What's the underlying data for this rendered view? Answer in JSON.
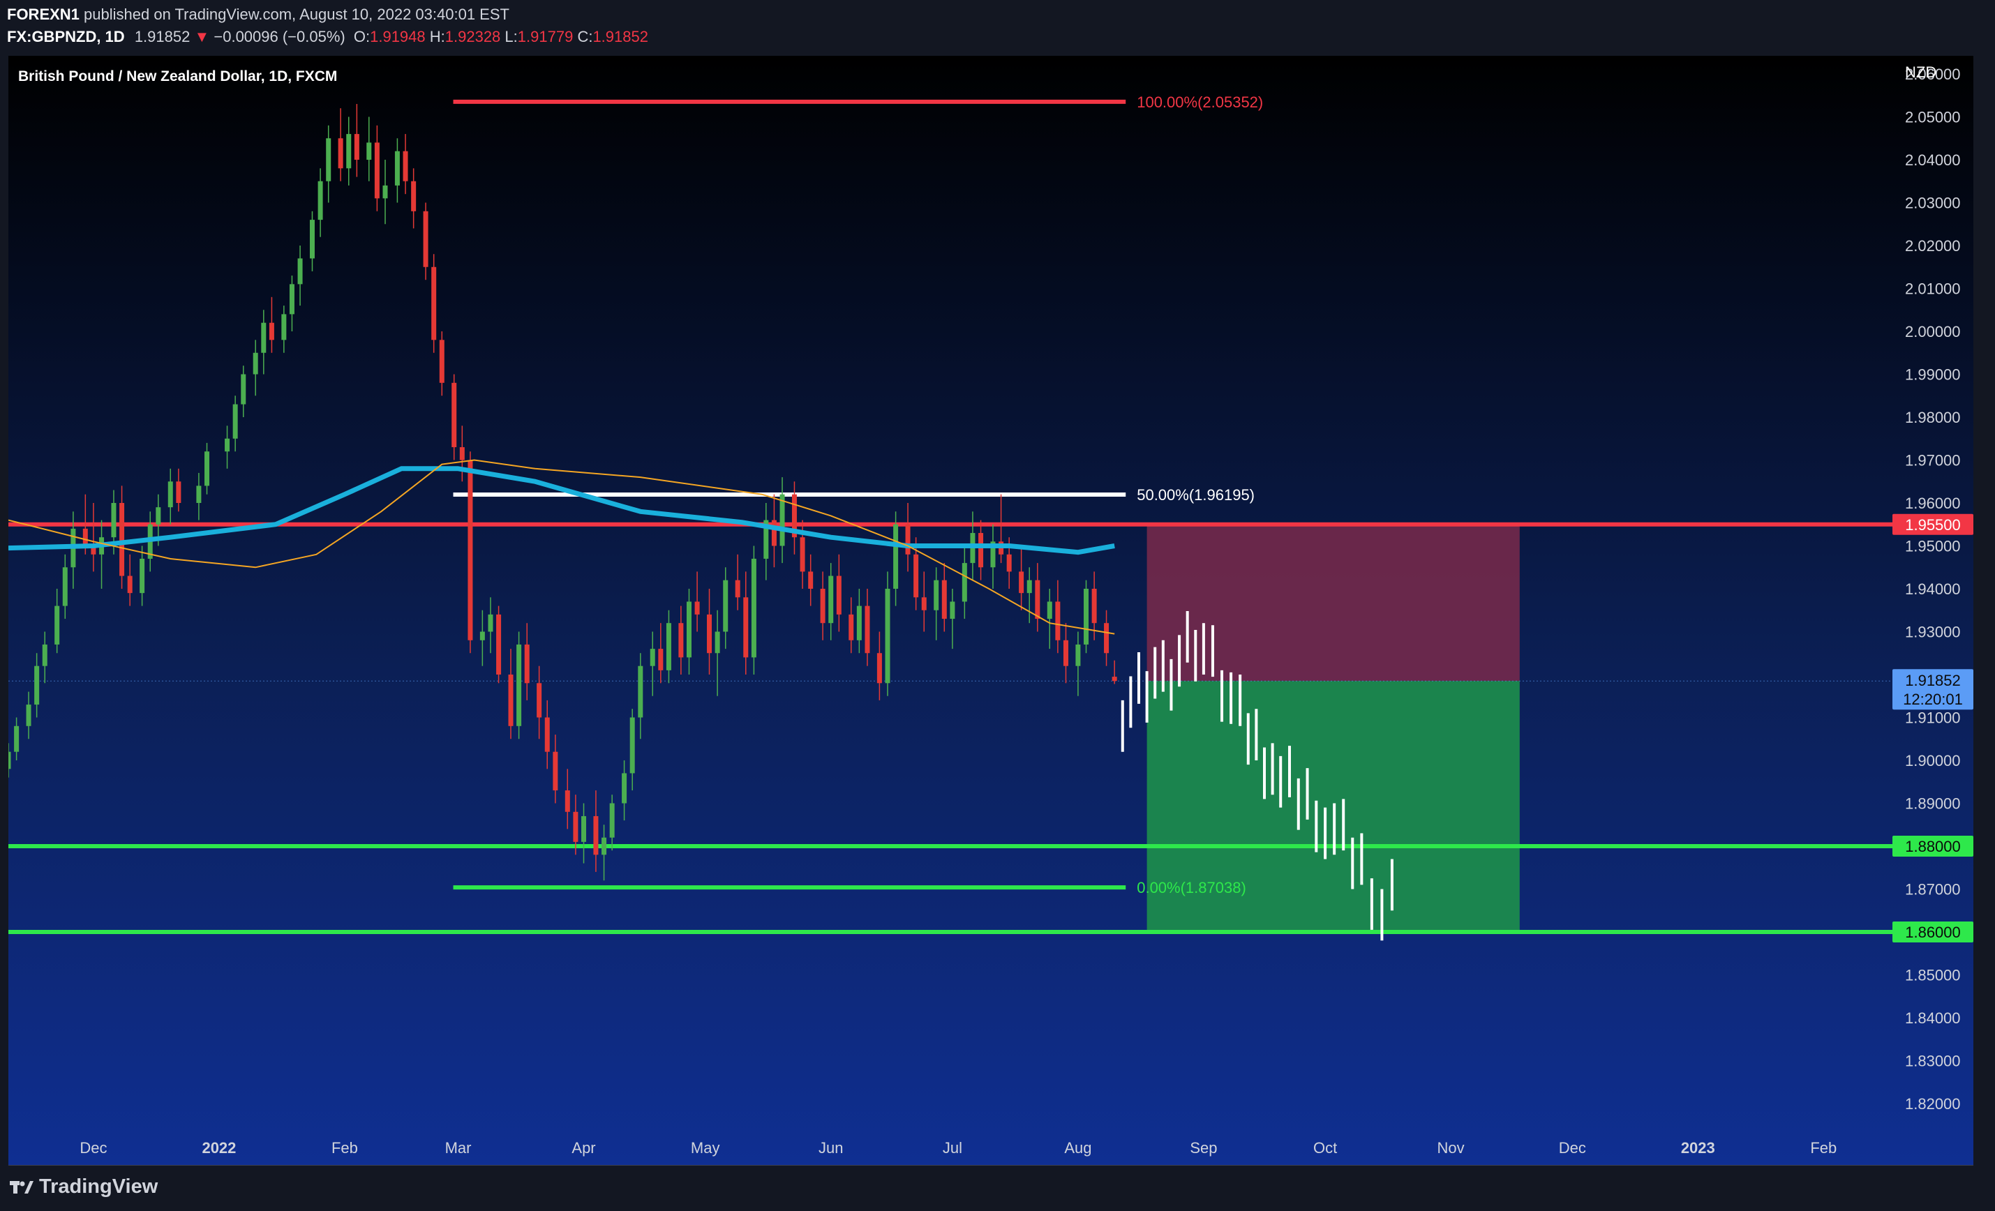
{
  "header": {
    "publisher": "FOREXN1",
    "published_text": "published on TradingView.com, August 10, 2022 03:40:01 EST",
    "symbol": "FX:GBPNZD, 1D",
    "last": "1.91852",
    "change": "−0.00096 (−0.05%)",
    "o_label": "O:",
    "o": "1.91948",
    "h_label": "H:",
    "h": "1.92328",
    "l_label": "L:",
    "l": "1.91779",
    "c_label": "C:",
    "c": "1.91852"
  },
  "footer": {
    "logo_text": "TradingView",
    "logo_icon": "tradingview-logo-icon"
  },
  "chart_data": {
    "type": "candlestick",
    "title": "British Pound / New Zealand Dollar, 1D, FXCM",
    "currency": "NZD",
    "y_range": [
      1.82,
      2.06
    ],
    "y_ticks": [
      "2.06000",
      "2.05000",
      "2.04000",
      "2.03000",
      "2.02000",
      "2.01000",
      "2.00000",
      "1.99000",
      "1.98000",
      "1.97000",
      "1.96000",
      "1.95000",
      "1.94000",
      "1.93000",
      "1.92000",
      "1.91000",
      "1.90000",
      "1.89000",
      "1.88000",
      "1.87000",
      "1.86000",
      "1.85000",
      "1.84000",
      "1.83000",
      "1.82000"
    ],
    "x_ticks": [
      {
        "label": "Dec",
        "date": "2021-12-01",
        "bold": false
      },
      {
        "label": "2022",
        "date": "2022-01-01",
        "bold": true
      },
      {
        "label": "Feb",
        "date": "2022-02-01",
        "bold": false
      },
      {
        "label": "Mar",
        "date": "2022-03-01",
        "bold": false
      },
      {
        "label": "Apr",
        "date": "2022-04-01",
        "bold": false
      },
      {
        "label": "May",
        "date": "2022-05-01",
        "bold": false
      },
      {
        "label": "Jun",
        "date": "2022-06-01",
        "bold": false
      },
      {
        "label": "Jul",
        "date": "2022-07-01",
        "bold": false
      },
      {
        "label": "Aug",
        "date": "2022-08-01",
        "bold": false
      },
      {
        "label": "Sep",
        "date": "2022-09-01",
        "bold": false
      },
      {
        "label": "Oct",
        "date": "2022-10-01",
        "bold": false
      },
      {
        "label": "Nov",
        "date": "2022-11-01",
        "bold": false
      },
      {
        "label": "Dec",
        "date": "2022-12-01",
        "bold": false
      },
      {
        "label": "2023",
        "date": "2023-01-01",
        "bold": true
      },
      {
        "label": "Feb",
        "date": "2023-02-01",
        "bold": false
      }
    ],
    "x_range": [
      "2021-11-10",
      "2023-02-18"
    ],
    "price_label": {
      "value": "1.91852",
      "countdown": "12:20:01",
      "color": "#5b9cf6"
    },
    "horizontal_levels": [
      {
        "value": 1.955,
        "label": "1.95500",
        "color": "#f23645"
      },
      {
        "value": 1.88,
        "label": "1.88000",
        "color": "#2ee84b"
      },
      {
        "value": 1.86,
        "label": "1.86000",
        "color": "#2ee84b"
      }
    ],
    "fib_levels": [
      {
        "value": 2.05352,
        "label": "100.00%(2.05352)",
        "color": "#f23645",
        "start": "2022-03-01",
        "end": "2022-08-20"
      },
      {
        "value": 1.96195,
        "label": "50.00%(1.96195)",
        "color": "#ffffff",
        "start": "2022-03-01",
        "end": "2022-08-20"
      },
      {
        "value": 1.87038,
        "label": "0.00%(1.87038)",
        "color": "#2ee84b",
        "start": "2022-03-01",
        "end": "2022-08-20"
      }
    ],
    "position": {
      "start": "2022-08-18",
      "end": "2022-11-18",
      "entry": 1.9185,
      "stop": 1.955,
      "target": 1.86,
      "stop_color": "#7a2a4b",
      "target_color": "#1c8a4d"
    },
    "sma_blue": {
      "color": "#1ab0dc",
      "points": [
        [
          "2021-11-10",
          1.9495
        ],
        [
          "2021-12-01",
          1.95
        ],
        [
          "2021-12-20",
          1.952
        ],
        [
          "2022-01-15",
          1.955
        ],
        [
          "2022-02-01",
          1.962
        ],
        [
          "2022-02-15",
          1.968
        ],
        [
          "2022-03-01",
          1.968
        ],
        [
          "2022-03-20",
          1.965
        ],
        [
          "2022-04-15",
          1.958
        ],
        [
          "2022-05-10",
          1.9555
        ],
        [
          "2022-06-01",
          1.952
        ],
        [
          "2022-06-20",
          1.95
        ],
        [
          "2022-07-15",
          1.95
        ],
        [
          "2022-08-01",
          1.9485
        ],
        [
          "2022-08-10",
          1.95
        ]
      ]
    },
    "sma_orange": {
      "color": "#f5a623",
      "points": [
        [
          "2021-11-10",
          1.956
        ],
        [
          "2021-12-01",
          1.951
        ],
        [
          "2021-12-20",
          1.947
        ],
        [
          "2022-01-10",
          1.945
        ],
        [
          "2022-01-25",
          1.948
        ],
        [
          "2022-02-10",
          1.958
        ],
        [
          "2022-02-25",
          1.969
        ],
        [
          "2022-03-05",
          1.97
        ],
        [
          "2022-03-20",
          1.968
        ],
        [
          "2022-04-15",
          1.966
        ],
        [
          "2022-05-15",
          1.962
        ],
        [
          "2022-06-01",
          1.957
        ],
        [
          "2022-06-20",
          1.95
        ],
        [
          "2022-07-10",
          1.94
        ],
        [
          "2022-07-25",
          1.932
        ],
        [
          "2022-08-10",
          1.9295
        ]
      ]
    },
    "forecast_path": [
      [
        "2022-08-12",
        1.912
      ],
      [
        "2022-08-22",
        1.92
      ],
      [
        "2022-09-01",
        1.928
      ],
      [
        "2022-09-10",
        1.91
      ],
      [
        "2022-09-20",
        1.895
      ],
      [
        "2022-10-01",
        1.887
      ],
      [
        "2022-10-10",
        1.875
      ],
      [
        "2022-10-15",
        1.866
      ],
      [
        "2022-10-20",
        1.872
      ]
    ],
    "candles_note": "estimated daily OHLC",
    "candles": [
      [
        "2021-11-10",
        1.898,
        1.904,
        1.896,
        1.902
      ],
      [
        "2021-11-12",
        1.902,
        1.91,
        1.9,
        1.908
      ],
      [
        "2021-11-15",
        1.908,
        1.916,
        1.905,
        1.913
      ],
      [
        "2021-11-17",
        1.913,
        1.925,
        1.91,
        1.922
      ],
      [
        "2021-11-19",
        1.922,
        1.93,
        1.918,
        1.927
      ],
      [
        "2021-11-22",
        1.927,
        1.94,
        1.925,
        1.936
      ],
      [
        "2021-11-24",
        1.936,
        1.948,
        1.933,
        1.945
      ],
      [
        "2021-11-26",
        1.945,
        1.958,
        1.94,
        1.954
      ],
      [
        "2021-11-29",
        1.954,
        1.962,
        1.948,
        1.95
      ],
      [
        "2021-12-01",
        1.95,
        1.96,
        1.944,
        1.948
      ],
      [
        "2021-12-03",
        1.948,
        1.956,
        1.94,
        1.952
      ],
      [
        "2021-12-06",
        1.952,
        1.963,
        1.948,
        1.96
      ],
      [
        "2021-12-08",
        1.96,
        1.964,
        1.94,
        1.943
      ],
      [
        "2021-12-10",
        1.943,
        1.948,
        1.936,
        1.939
      ],
      [
        "2021-12-13",
        1.939,
        1.95,
        1.936,
        1.947
      ],
      [
        "2021-12-15",
        1.947,
        1.958,
        1.944,
        1.955
      ],
      [
        "2021-12-17",
        1.955,
        1.962,
        1.95,
        1.959
      ],
      [
        "2021-12-20",
        1.959,
        1.968,
        1.955,
        1.965
      ],
      [
        "2021-12-22",
        1.965,
        1.968,
        1.958,
        1.96
      ],
      [
        "2021-12-27",
        1.96,
        1.967,
        1.956,
        1.964
      ],
      [
        "2021-12-29",
        1.964,
        1.974,
        1.962,
        1.972
      ],
      [
        "2022-01-03",
        1.972,
        1.978,
        1.968,
        1.975
      ],
      [
        "2022-01-05",
        1.975,
        1.985,
        1.972,
        1.983
      ],
      [
        "2022-01-07",
        1.983,
        1.992,
        1.98,
        1.99
      ],
      [
        "2022-01-10",
        1.99,
        1.998,
        1.985,
        1.995
      ],
      [
        "2022-01-12",
        1.995,
        2.005,
        1.99,
        2.002
      ],
      [
        "2022-01-14",
        2.002,
        2.008,
        1.995,
        1.998
      ],
      [
        "2022-01-17",
        1.998,
        2.006,
        1.995,
        2.004
      ],
      [
        "2022-01-19",
        2.004,
        2.013,
        2.0,
        2.011
      ],
      [
        "2022-01-21",
        2.011,
        2.02,
        2.006,
        2.017
      ],
      [
        "2022-01-24",
        2.017,
        2.028,
        2.014,
        2.026
      ],
      [
        "2022-01-26",
        2.026,
        2.038,
        2.022,
        2.035
      ],
      [
        "2022-01-28",
        2.035,
        2.048,
        2.03,
        2.045
      ],
      [
        "2022-01-31",
        2.045,
        2.052,
        2.035,
        2.038
      ],
      [
        "2022-02-02",
        2.038,
        2.05,
        2.034,
        2.046
      ],
      [
        "2022-02-04",
        2.046,
        2.053,
        2.036,
        2.04
      ],
      [
        "2022-02-07",
        2.04,
        2.05,
        2.035,
        2.044
      ],
      [
        "2022-02-09",
        2.044,
        2.048,
        2.028,
        2.031
      ],
      [
        "2022-02-11",
        2.031,
        2.04,
        2.025,
        2.034
      ],
      [
        "2022-02-14",
        2.034,
        2.045,
        2.03,
        2.042
      ],
      [
        "2022-02-16",
        2.042,
        2.046,
        2.032,
        2.035
      ],
      [
        "2022-02-18",
        2.035,
        2.038,
        2.024,
        2.028
      ],
      [
        "2022-02-21",
        2.028,
        2.03,
        2.012,
        2.015
      ],
      [
        "2022-02-23",
        2.015,
        2.018,
        1.995,
        1.998
      ],
      [
        "2022-02-25",
        1.998,
        2.0,
        1.985,
        1.988
      ],
      [
        "2022-02-28",
        1.988,
        1.99,
        1.97,
        1.973
      ],
      [
        "2022-03-02",
        1.973,
        1.978,
        1.965,
        1.97
      ],
      [
        "2022-03-04",
        1.97,
        1.972,
        1.925,
        1.928
      ],
      [
        "2022-03-07",
        1.928,
        1.935,
        1.922,
        1.93
      ],
      [
        "2022-03-09",
        1.93,
        1.938,
        1.925,
        1.934
      ],
      [
        "2022-03-11",
        1.934,
        1.936,
        1.918,
        1.92
      ],
      [
        "2022-03-14",
        1.92,
        1.926,
        1.905,
        1.908
      ],
      [
        "2022-03-16",
        1.908,
        1.93,
        1.905,
        1.927
      ],
      [
        "2022-03-18",
        1.927,
        1.932,
        1.914,
        1.918
      ],
      [
        "2022-03-21",
        1.918,
        1.922,
        1.905,
        1.91
      ],
      [
        "2022-03-23",
        1.91,
        1.914,
        1.898,
        1.902
      ],
      [
        "2022-03-25",
        1.902,
        1.906,
        1.89,
        1.893
      ],
      [
        "2022-03-28",
        1.893,
        1.898,
        1.884,
        1.888
      ],
      [
        "2022-03-30",
        1.888,
        1.892,
        1.878,
        1.881
      ],
      [
        "2022-04-01",
        1.881,
        1.89,
        1.876,
        1.887
      ],
      [
        "2022-04-04",
        1.887,
        1.893,
        1.874,
        1.878
      ],
      [
        "2022-04-06",
        1.878,
        1.885,
        1.872,
        1.882
      ],
      [
        "2022-04-08",
        1.882,
        1.892,
        1.879,
        1.89
      ],
      [
        "2022-04-11",
        1.89,
        1.9,
        1.886,
        1.897
      ],
      [
        "2022-04-13",
        1.897,
        1.912,
        1.893,
        1.91
      ],
      [
        "2022-04-15",
        1.91,
        1.925,
        1.905,
        1.922
      ],
      [
        "2022-04-18",
        1.922,
        1.93,
        1.915,
        1.926
      ],
      [
        "2022-04-20",
        1.926,
        1.932,
        1.918,
        1.921
      ],
      [
        "2022-04-22",
        1.921,
        1.935,
        1.918,
        1.932
      ],
      [
        "2022-04-25",
        1.932,
        1.936,
        1.92,
        1.924
      ],
      [
        "2022-04-27",
        1.924,
        1.94,
        1.92,
        1.937
      ],
      [
        "2022-04-29",
        1.937,
        1.944,
        1.93,
        1.934
      ],
      [
        "2022-05-02",
        1.934,
        1.94,
        1.92,
        1.925
      ],
      [
        "2022-05-04",
        1.925,
        1.935,
        1.915,
        1.93
      ],
      [
        "2022-05-06",
        1.93,
        1.945,
        1.926,
        1.942
      ],
      [
        "2022-05-09",
        1.942,
        1.948,
        1.935,
        1.938
      ],
      [
        "2022-05-11",
        1.938,
        1.944,
        1.92,
        1.924
      ],
      [
        "2022-05-13",
        1.924,
        1.95,
        1.92,
        1.947
      ],
      [
        "2022-05-16",
        1.947,
        1.96,
        1.942,
        1.956
      ],
      [
        "2022-05-18",
        1.956,
        1.962,
        1.945,
        1.95
      ],
      [
        "2022-05-20",
        1.95,
        1.966,
        1.946,
        1.962
      ],
      [
        "2022-05-23",
        1.962,
        1.965,
        1.948,
        1.952
      ],
      [
        "2022-05-25",
        1.952,
        1.956,
        1.94,
        1.944
      ],
      [
        "2022-05-27",
        1.944,
        1.948,
        1.936,
        1.94
      ],
      [
        "2022-05-30",
        1.94,
        1.944,
        1.928,
        1.932
      ],
      [
        "2022-06-01",
        1.932,
        1.946,
        1.928,
        1.943
      ],
      [
        "2022-06-03",
        1.943,
        1.948,
        1.93,
        1.934
      ],
      [
        "2022-06-06",
        1.934,
        1.938,
        1.925,
        1.928
      ],
      [
        "2022-06-08",
        1.928,
        1.94,
        1.925,
        1.936
      ],
      [
        "2022-06-10",
        1.936,
        1.94,
        1.922,
        1.925
      ],
      [
        "2022-06-13",
        1.925,
        1.93,
        1.914,
        1.918
      ],
      [
        "2022-06-15",
        1.918,
        1.944,
        1.915,
        1.94
      ],
      [
        "2022-06-17",
        1.94,
        1.958,
        1.936,
        1.955
      ],
      [
        "2022-06-20",
        1.955,
        1.96,
        1.944,
        1.948
      ],
      [
        "2022-06-22",
        1.948,
        1.952,
        1.935,
        1.938
      ],
      [
        "2022-06-24",
        1.938,
        1.944,
        1.93,
        1.935
      ],
      [
        "2022-06-27",
        1.935,
        1.945,
        1.928,
        1.942
      ],
      [
        "2022-06-29",
        1.942,
        1.946,
        1.93,
        1.933
      ],
      [
        "2022-07-01",
        1.933,
        1.94,
        1.926,
        1.937
      ],
      [
        "2022-07-04",
        1.937,
        1.95,
        1.933,
        1.946
      ],
      [
        "2022-07-06",
        1.946,
        1.958,
        1.942,
        1.953
      ],
      [
        "2022-07-08",
        1.953,
        1.956,
        1.942,
        1.945
      ],
      [
        "2022-07-11",
        1.945,
        1.955,
        1.94,
        1.951
      ],
      [
        "2022-07-13",
        1.951,
        1.962,
        1.946,
        1.948
      ],
      [
        "2022-07-15",
        1.948,
        1.952,
        1.94,
        1.944
      ],
      [
        "2022-07-18",
        1.944,
        1.95,
        1.935,
        1.939
      ],
      [
        "2022-07-20",
        1.939,
        1.945,
        1.932,
        1.942
      ],
      [
        "2022-07-22",
        1.942,
        1.946,
        1.93,
        1.933
      ],
      [
        "2022-07-25",
        1.933,
        1.94,
        1.926,
        1.937
      ],
      [
        "2022-07-27",
        1.937,
        1.942,
        1.925,
        1.928
      ],
      [
        "2022-07-29",
        1.928,
        1.932,
        1.918,
        1.922
      ],
      [
        "2022-08-01",
        1.922,
        1.93,
        1.915,
        1.927
      ],
      [
        "2022-08-03",
        1.927,
        1.942,
        1.925,
        1.94
      ],
      [
        "2022-08-05",
        1.94,
        1.944,
        1.928,
        1.932
      ],
      [
        "2022-08-08",
        1.932,
        1.935,
        1.922,
        1.925
      ],
      [
        "2022-08-10",
        1.9195,
        1.9233,
        1.9178,
        1.9185
      ]
    ]
  }
}
